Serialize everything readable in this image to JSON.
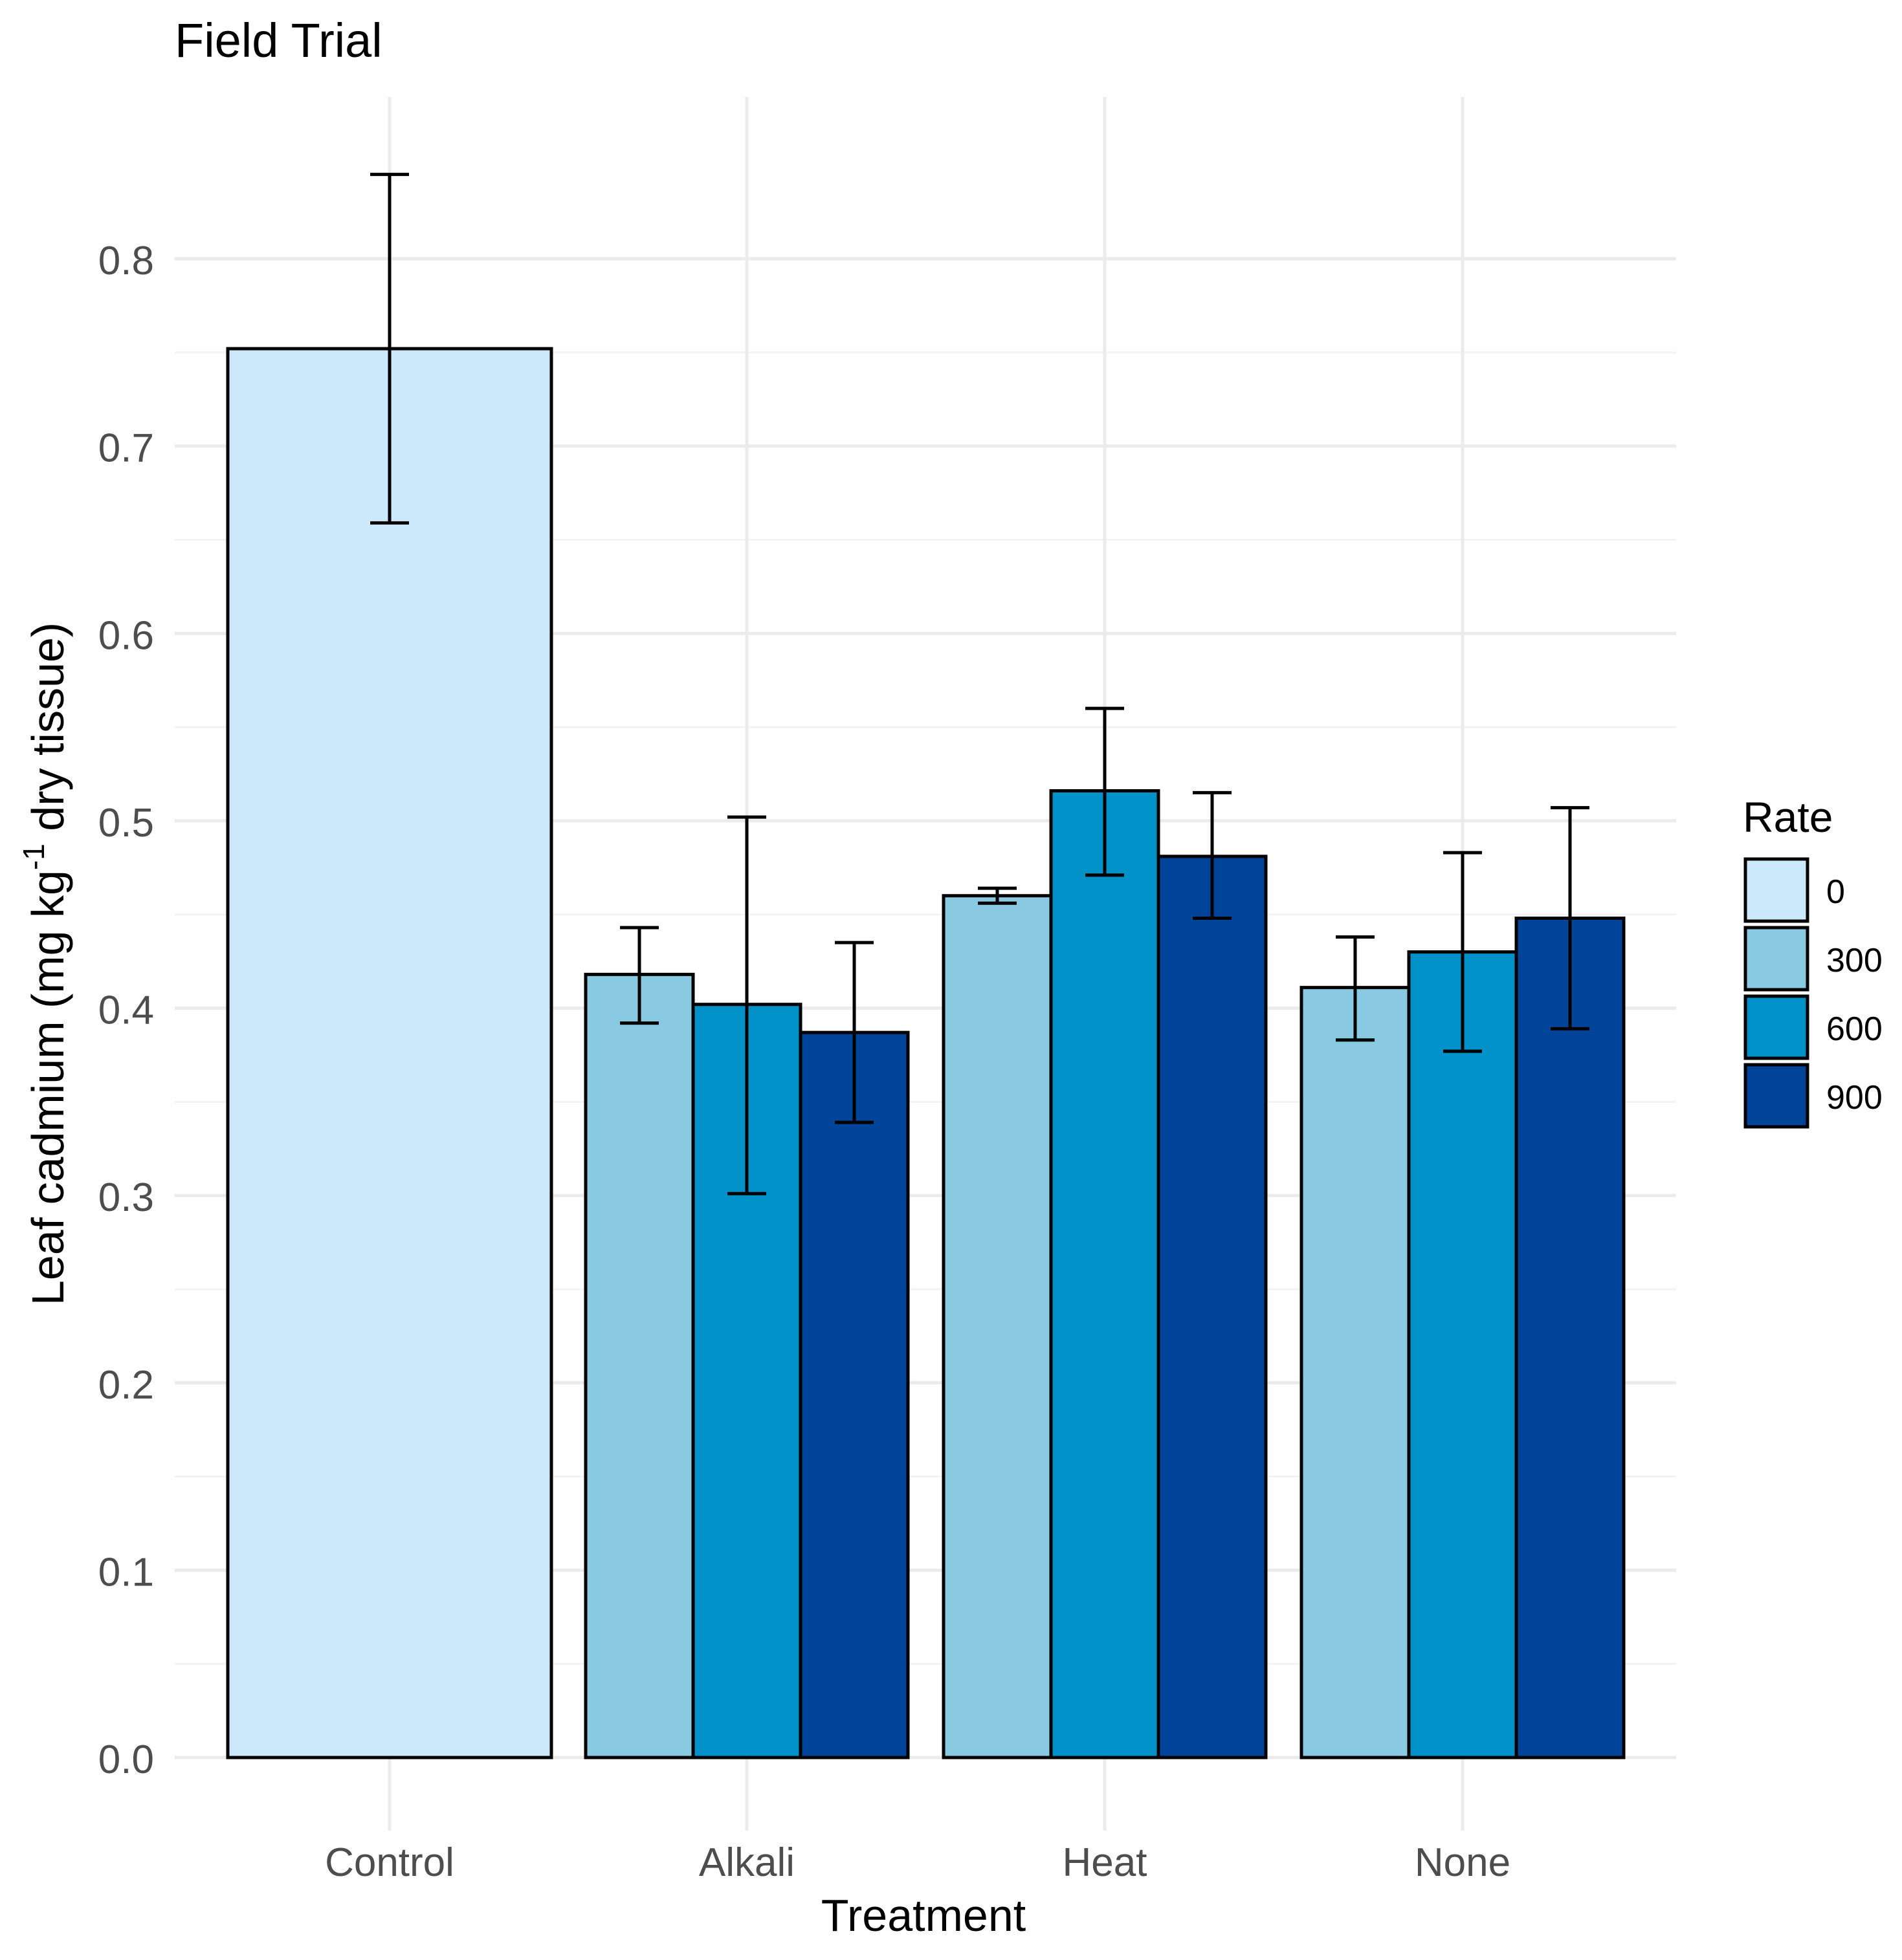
{
  "chart_data": {
    "type": "bar",
    "title": "Field Trial",
    "xlabel": "Treatment",
    "ylabel": {
      "prefix": "Leaf cadmium (mg kg",
      "superscript": "-1",
      "suffix": " dry tissue)"
    },
    "ylim": [
      0,
      0.88
    ],
    "yticks": [
      0.0,
      0.1,
      0.2,
      0.3,
      0.4,
      0.5,
      0.6,
      0.7,
      0.8
    ],
    "ytick_labels": [
      "0.0",
      "0.1",
      "0.2",
      "0.3",
      "0.4",
      "0.5",
      "0.6",
      "0.7",
      "0.8"
    ],
    "grid": true,
    "legend": {
      "title": "Rate",
      "position": "right",
      "entries": [
        {
          "label": "0",
          "color": "#cce9fc"
        },
        {
          "label": "300",
          "color": "#89c9e2"
        },
        {
          "label": "600",
          "color": "#0091c8"
        },
        {
          "label": "900",
          "color": "#00449a"
        }
      ]
    },
    "categories": [
      "Control",
      "Alkali",
      "Heat",
      "None"
    ],
    "groups": [
      {
        "category": "Control",
        "bars": [
          {
            "rate": "0",
            "value": 0.752,
            "err_low": 0.659,
            "err_high": 0.845
          }
        ]
      },
      {
        "category": "Alkali",
        "bars": [
          {
            "rate": "300",
            "value": 0.418,
            "err_low": 0.392,
            "err_high": 0.443
          },
          {
            "rate": "600",
            "value": 0.402,
            "err_low": 0.301,
            "err_high": 0.502
          },
          {
            "rate": "900",
            "value": 0.387,
            "err_low": 0.339,
            "err_high": 0.435
          }
        ]
      },
      {
        "category": "Heat",
        "bars": [
          {
            "rate": "300",
            "value": 0.46,
            "err_low": 0.456,
            "err_high": 0.464
          },
          {
            "rate": "600",
            "value": 0.516,
            "err_low": 0.471,
            "err_high": 0.56
          },
          {
            "rate": "900",
            "value": 0.481,
            "err_low": 0.448,
            "err_high": 0.515
          }
        ]
      },
      {
        "category": "None",
        "bars": [
          {
            "rate": "300",
            "value": 0.411,
            "err_low": 0.383,
            "err_high": 0.438
          },
          {
            "rate": "600",
            "value": 0.43,
            "err_low": 0.377,
            "err_high": 0.483
          },
          {
            "rate": "900",
            "value": 0.448,
            "err_low": 0.389,
            "err_high": 0.507
          }
        ]
      }
    ]
  }
}
